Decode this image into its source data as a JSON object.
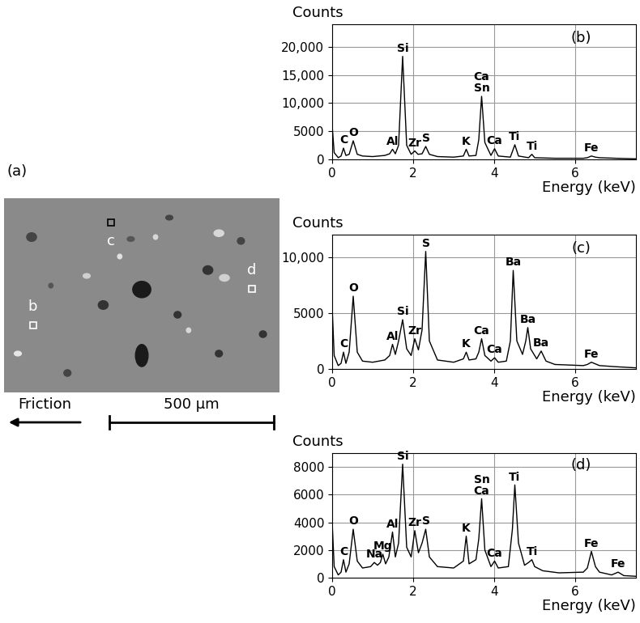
{
  "micrograph": {
    "panel_label": "(a)",
    "regions": [
      "b",
      "c",
      "d"
    ],
    "direction_label": "Friction",
    "scale_bar": "500 µm"
  },
  "chart_data": [
    {
      "type": "line",
      "title": "(b)",
      "x_label": "Energy (keV)",
      "y_label": "Counts",
      "color": "#000000",
      "grid": true,
      "xlim": [
        0,
        7.5
      ],
      "xticks": [
        0,
        2,
        4,
        6
      ],
      "ylim": [
        0,
        24000
      ],
      "yticks": [
        0,
        5000,
        {
          "value": 10000,
          "label": "10,000"
        },
        {
          "value": 15000,
          "label": "15,000"
        },
        {
          "value": 20000,
          "label": "20,000"
        }
      ],
      "x": [
        0,
        0.05,
        0.15,
        0.22,
        0.28,
        0.34,
        0.42,
        0.52,
        0.62,
        0.75,
        1.0,
        1.3,
        1.42,
        1.49,
        1.56,
        1.64,
        1.74,
        1.84,
        1.95,
        2.04,
        2.12,
        2.22,
        2.31,
        2.4,
        2.6,
        3.0,
        3.24,
        3.31,
        3.38,
        3.55,
        3.62,
        3.69,
        3.77,
        3.92,
        4.01,
        4.1,
        4.4,
        4.51,
        4.6,
        4.85,
        4.93,
        5.0,
        5.5,
        6.2,
        6.3,
        6.4,
        6.5,
        6.6,
        7.0,
        7.5
      ],
      "values": [
        6000,
        1200,
        300,
        600,
        2000,
        700,
        900,
        3300,
        900,
        600,
        500,
        700,
        1000,
        1800,
        1000,
        2500,
        18300,
        2500,
        900,
        1500,
        900,
        1000,
        2300,
        900,
        500,
        400,
        600,
        1800,
        600,
        700,
        3500,
        11200,
        3000,
        700,
        1900,
        600,
        400,
        2600,
        600,
        300,
        900,
        300,
        200,
        200,
        300,
        600,
        400,
        300,
        200,
        100
      ],
      "annotations": [
        {
          "text": "C",
          "x": 0.28
        },
        {
          "text": "O",
          "x": 0.52
        },
        {
          "text": "Al",
          "x": 1.49
        },
        {
          "text": "Si",
          "x": 1.74
        },
        {
          "text": "Zr",
          "x": 2.04
        },
        {
          "text": "S",
          "x": 2.31
        },
        {
          "text": "K",
          "x": 3.31
        },
        {
          "text": "Ca\nSn",
          "x": 3.69
        },
        {
          "text": "Ca",
          "x": 4.01
        },
        {
          "text": "Ti",
          "x": 4.51
        },
        {
          "text": "Ti",
          "x": 4.93
        },
        {
          "text": "Fe",
          "x": 6.4
        }
      ]
    },
    {
      "type": "line",
      "title": "(c)",
      "x_label": "Energy (keV)",
      "y_label": "Counts",
      "color": "#000000",
      "grid": true,
      "xlim": [
        0,
        7.5
      ],
      "xticks": [
        0,
        2,
        4,
        6
      ],
      "ylim": [
        0,
        12000
      ],
      "yticks": [
        0,
        5000,
        {
          "value": 10000,
          "label": "10,000"
        }
      ],
      "x": [
        0,
        0.05,
        0.15,
        0.22,
        0.28,
        0.34,
        0.42,
        0.52,
        0.62,
        0.75,
        1.0,
        1.3,
        1.42,
        1.49,
        1.56,
        1.64,
        1.74,
        1.84,
        1.95,
        2.04,
        2.13,
        2.22,
        2.31,
        2.4,
        2.6,
        3.0,
        3.24,
        3.31,
        3.38,
        3.55,
        3.62,
        3.69,
        3.77,
        3.92,
        4.01,
        4.1,
        4.3,
        4.4,
        4.47,
        4.56,
        4.7,
        4.78,
        4.83,
        4.9,
        5.05,
        5.16,
        5.28,
        5.5,
        6.2,
        6.3,
        6.4,
        6.5,
        6.6,
        7.0,
        7.5
      ],
      "values": [
        5500,
        1200,
        300,
        500,
        1500,
        500,
        1500,
        6500,
        1500,
        700,
        600,
        800,
        1200,
        2200,
        1300,
        2500,
        4400,
        1800,
        1200,
        2700,
        1700,
        3500,
        10500,
        2500,
        800,
        600,
        900,
        1500,
        800,
        900,
        1500,
        2700,
        1200,
        700,
        1000,
        600,
        700,
        2500,
        8800,
        2500,
        1300,
        2500,
        3700,
        1800,
        900,
        1600,
        700,
        400,
        300,
        400,
        600,
        450,
        300,
        200,
        100
      ],
      "annotations": [
        {
          "text": "C",
          "x": 0.28
        },
        {
          "text": "O",
          "x": 0.52
        },
        {
          "text": "Al",
          "x": 1.49
        },
        {
          "text": "Si",
          "x": 1.74
        },
        {
          "text": "Zr",
          "x": 2.04
        },
        {
          "text": "S",
          "x": 2.31
        },
        {
          "text": "K",
          "x": 3.31
        },
        {
          "text": "Ca",
          "x": 3.69
        },
        {
          "text": "Ca",
          "x": 4.01
        },
        {
          "text": "Ba",
          "x": 4.47
        },
        {
          "text": "Ba",
          "x": 4.83
        },
        {
          "text": "Ba",
          "x": 5.16
        },
        {
          "text": "Fe",
          "x": 6.4
        }
      ]
    },
    {
      "type": "line",
      "title": "(d)",
      "x_label": "Energy (keV)",
      "y_label": "Counts",
      "color": "#000000",
      "grid": true,
      "xlim": [
        0,
        7.5
      ],
      "xticks": [
        0,
        2,
        4,
        6
      ],
      "ylim": [
        0,
        9000
      ],
      "yticks": [
        0,
        2000,
        4000,
        6000,
        8000
      ],
      "x": [
        0,
        0.05,
        0.15,
        0.22,
        0.28,
        0.34,
        0.42,
        0.52,
        0.62,
        0.75,
        0.95,
        1.04,
        1.12,
        1.19,
        1.25,
        1.32,
        1.4,
        1.49,
        1.56,
        1.64,
        1.74,
        1.84,
        1.95,
        2.04,
        2.13,
        2.22,
        2.31,
        2.4,
        2.6,
        3.0,
        3.24,
        3.31,
        3.38,
        3.55,
        3.62,
        3.69,
        3.77,
        3.92,
        4.01,
        4.1,
        4.35,
        4.45,
        4.51,
        4.6,
        4.75,
        4.85,
        4.93,
        5.0,
        5.2,
        5.6,
        6.2,
        6.3,
        6.4,
        6.5,
        6.6,
        6.9,
        7.06,
        7.2,
        7.5
      ],
      "values": [
        4000,
        800,
        200,
        400,
        1300,
        400,
        1000,
        3500,
        1200,
        700,
        800,
        1100,
        900,
        1100,
        1700,
        1000,
        1500,
        3300,
        1500,
        2500,
        8200,
        2200,
        1500,
        3400,
        1800,
        2500,
        3500,
        1500,
        800,
        700,
        1200,
        3000,
        1000,
        1300,
        2800,
        5700,
        2000,
        800,
        1200,
        700,
        800,
        3500,
        6700,
        2500,
        900,
        1100,
        1300,
        800,
        500,
        350,
        400,
        700,
        1900,
        800,
        400,
        200,
        400,
        150,
        100
      ],
      "annotations": [
        {
          "text": "C",
          "x": 0.28
        },
        {
          "text": "O",
          "x": 0.52
        },
        {
          "text": "Na",
          "x": 1.04
        },
        {
          "text": "Mg",
          "x": 1.25
        },
        {
          "text": "Al",
          "x": 1.49
        },
        {
          "text": "Si",
          "x": 1.74
        },
        {
          "text": "Zr",
          "x": 2.04
        },
        {
          "text": "S",
          "x": 2.31
        },
        {
          "text": "K",
          "x": 3.31
        },
        {
          "text": "Sn\nCa",
          "x": 3.69
        },
        {
          "text": "Ca",
          "x": 4.01
        },
        {
          "text": "Ti",
          "x": 4.51
        },
        {
          "text": "Ti",
          "x": 4.93
        },
        {
          "text": "Fe",
          "x": 6.4
        },
        {
          "text": "Fe",
          "x": 7.06
        }
      ]
    }
  ]
}
